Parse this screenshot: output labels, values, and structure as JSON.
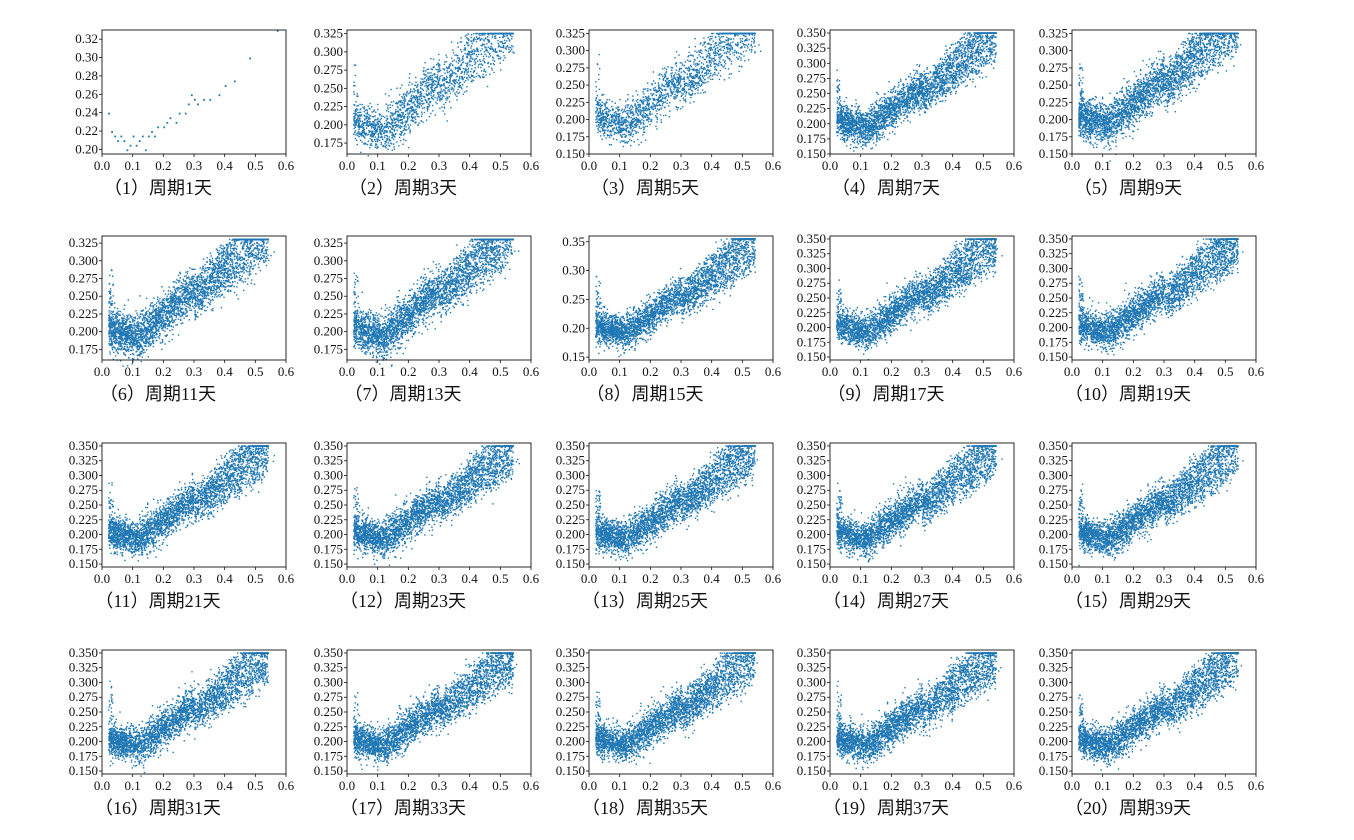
{
  "chart_data": [
    {
      "type": "scatter",
      "caption": "（1）周期1天",
      "xlim": [
        0,
        0.6
      ],
      "ylim": [
        0.195,
        0.33
      ],
      "xticks": [
        "0.0",
        "0.1",
        "0.2",
        "0.3",
        "0.4",
        "0.5",
        "0.6"
      ],
      "yticks": [
        "0.20",
        "0.22",
        "0.24",
        "0.26",
        "0.28",
        "0.30",
        "0.32"
      ],
      "color": "#1f77b4",
      "density": "sparse",
      "points": [
        [
          0.02,
          0.24
        ],
        [
          0.03,
          0.22
        ],
        [
          0.04,
          0.215
        ],
        [
          0.05,
          0.21
        ],
        [
          0.06,
          0.215
        ],
        [
          0.07,
          0.21
        ],
        [
          0.08,
          0.2
        ],
        [
          0.09,
          0.205
        ],
        [
          0.1,
          0.215
        ],
        [
          0.11,
          0.205
        ],
        [
          0.12,
          0.21
        ],
        [
          0.13,
          0.215
        ],
        [
          0.14,
          0.2
        ],
        [
          0.15,
          0.215
        ],
        [
          0.16,
          0.22
        ],
        [
          0.17,
          0.215
        ],
        [
          0.18,
          0.225
        ],
        [
          0.2,
          0.225
        ],
        [
          0.21,
          0.23
        ],
        [
          0.22,
          0.235
        ],
        [
          0.24,
          0.23
        ],
        [
          0.25,
          0.24
        ],
        [
          0.27,
          0.24
        ],
        [
          0.28,
          0.25
        ],
        [
          0.29,
          0.26
        ],
        [
          0.3,
          0.255
        ],
        [
          0.31,
          0.25
        ],
        [
          0.33,
          0.255
        ],
        [
          0.35,
          0.255
        ],
        [
          0.38,
          0.26
        ],
        [
          0.4,
          0.27
        ],
        [
          0.43,
          0.275
        ],
        [
          0.48,
          0.3
        ],
        [
          0.57,
          0.33
        ]
      ]
    },
    {
      "type": "scatter",
      "caption": "（2）周期3天",
      "xlim": [
        0,
        0.6
      ],
      "ylim": [
        0.16,
        0.33
      ],
      "xticks": [
        "0.0",
        "0.1",
        "0.2",
        "0.3",
        "0.4",
        "0.5",
        "0.6"
      ],
      "yticks": [
        "0.175",
        "0.200",
        "0.225",
        "0.250",
        "0.275",
        "0.300",
        "0.325"
      ],
      "color": "#1f77b4",
      "density": "medium"
    },
    {
      "type": "scatter",
      "caption": "（3）周期5天",
      "xlim": [
        0,
        0.6
      ],
      "ylim": [
        0.15,
        0.33
      ],
      "xticks": [
        "0.0",
        "0.1",
        "0.2",
        "0.3",
        "0.4",
        "0.5",
        "0.6"
      ],
      "yticks": [
        "0.150",
        "0.175",
        "0.200",
        "0.225",
        "0.250",
        "0.275",
        "0.300",
        "0.325"
      ],
      "color": "#1f77b4",
      "density": "medium"
    },
    {
      "type": "scatter",
      "caption": "（4）周期7天",
      "xlim": [
        0,
        0.6
      ],
      "ylim": [
        0.15,
        0.355
      ],
      "xticks": [
        "0.0",
        "0.1",
        "0.2",
        "0.3",
        "0.4",
        "0.5",
        "0.6"
      ],
      "yticks": [
        "0.150",
        "0.175",
        "0.200",
        "0.225",
        "0.250",
        "0.275",
        "0.300",
        "0.325",
        "0.350"
      ],
      "color": "#1f77b4",
      "density": "dense"
    },
    {
      "type": "scatter",
      "caption": "（5）周期9天",
      "xlim": [
        0,
        0.6
      ],
      "ylim": [
        0.15,
        0.33
      ],
      "xticks": [
        "0.0",
        "0.1",
        "0.2",
        "0.3",
        "0.4",
        "0.5",
        "0.6"
      ],
      "yticks": [
        "0.150",
        "0.175",
        "0.200",
        "0.225",
        "0.250",
        "0.275",
        "0.300",
        "0.325"
      ],
      "color": "#1f77b4",
      "density": "dense"
    },
    {
      "type": "scatter",
      "caption": "（6）周期11天",
      "xlim": [
        0,
        0.6
      ],
      "ylim": [
        0.16,
        0.335
      ],
      "xticks": [
        "0.0",
        "0.1",
        "0.2",
        "0.3",
        "0.4",
        "0.5",
        "0.6"
      ],
      "yticks": [
        "0.175",
        "0.200",
        "0.225",
        "0.250",
        "0.275",
        "0.300",
        "0.325"
      ],
      "color": "#1f77b4",
      "density": "dense"
    },
    {
      "type": "scatter",
      "caption": "（7）周期13天",
      "xlim": [
        0,
        0.6
      ],
      "ylim": [
        0.16,
        0.335
      ],
      "xticks": [
        "0.0",
        "0.1",
        "0.2",
        "0.3",
        "0.4",
        "0.5",
        "0.6"
      ],
      "yticks": [
        "0.175",
        "0.200",
        "0.225",
        "0.250",
        "0.275",
        "0.300",
        "0.325"
      ],
      "color": "#1f77b4",
      "density": "dense"
    },
    {
      "type": "scatter",
      "caption": "（8）周期15天",
      "xlim": [
        0,
        0.6
      ],
      "ylim": [
        0.145,
        0.36
      ],
      "xticks": [
        "0.0",
        "0.1",
        "0.2",
        "0.3",
        "0.4",
        "0.5",
        "0.6"
      ],
      "yticks": [
        "0.15",
        "0.20",
        "0.25",
        "0.30",
        "0.35"
      ],
      "color": "#1f77b4",
      "density": "dense"
    },
    {
      "type": "scatter",
      "caption": "（9）周期17天",
      "xlim": [
        0,
        0.6
      ],
      "ylim": [
        0.145,
        0.355
      ],
      "xticks": [
        "0.0",
        "0.1",
        "0.2",
        "0.3",
        "0.4",
        "0.5",
        "0.6"
      ],
      "yticks": [
        "0.150",
        "0.175",
        "0.200",
        "0.225",
        "0.250",
        "0.275",
        "0.300",
        "0.325",
        "0.350"
      ],
      "color": "#1f77b4",
      "density": "dense"
    },
    {
      "type": "scatter",
      "caption": "（10）周期19天",
      "xlim": [
        0,
        0.6
      ],
      "ylim": [
        0.145,
        0.355
      ],
      "xticks": [
        "0.0",
        "0.1",
        "0.2",
        "0.3",
        "0.4",
        "0.5",
        "0.6"
      ],
      "yticks": [
        "0.150",
        "0.175",
        "0.200",
        "0.225",
        "0.250",
        "0.275",
        "0.300",
        "0.325",
        "0.350"
      ],
      "color": "#1f77b4",
      "density": "dense"
    },
    {
      "type": "scatter",
      "caption": "（11）周期21天",
      "xlim": [
        0,
        0.6
      ],
      "ylim": [
        0.145,
        0.355
      ],
      "xticks": [
        "0.0",
        "0.1",
        "0.2",
        "0.3",
        "0.4",
        "0.5",
        "0.6"
      ],
      "yticks": [
        "0.150",
        "0.175",
        "0.200",
        "0.225",
        "0.250",
        "0.275",
        "0.300",
        "0.325",
        "0.350"
      ],
      "color": "#1f77b4",
      "density": "dense"
    },
    {
      "type": "scatter",
      "caption": "（12）周期23天",
      "xlim": [
        0,
        0.6
      ],
      "ylim": [
        0.145,
        0.355
      ],
      "xticks": [
        "0.0",
        "0.1",
        "0.2",
        "0.3",
        "0.4",
        "0.5",
        "0.6"
      ],
      "yticks": [
        "0.150",
        "0.175",
        "0.200",
        "0.225",
        "0.250",
        "0.275",
        "0.300",
        "0.325",
        "0.350"
      ],
      "color": "#1f77b4",
      "density": "dense"
    },
    {
      "type": "scatter",
      "caption": "（13）周期25天",
      "xlim": [
        0,
        0.6
      ],
      "ylim": [
        0.145,
        0.355
      ],
      "xticks": [
        "0.0",
        "0.1",
        "0.2",
        "0.3",
        "0.4",
        "0.5",
        "0.6"
      ],
      "yticks": [
        "0.150",
        "0.175",
        "0.200",
        "0.225",
        "0.250",
        "0.275",
        "0.300",
        "0.325",
        "0.350"
      ],
      "color": "#1f77b4",
      "density": "dense"
    },
    {
      "type": "scatter",
      "caption": "（14）周期27天",
      "xlim": [
        0,
        0.6
      ],
      "ylim": [
        0.145,
        0.355
      ],
      "xticks": [
        "0.0",
        "0.1",
        "0.2",
        "0.3",
        "0.4",
        "0.5",
        "0.6"
      ],
      "yticks": [
        "0.150",
        "0.175",
        "0.200",
        "0.225",
        "0.250",
        "0.275",
        "0.300",
        "0.325",
        "0.350"
      ],
      "color": "#1f77b4",
      "density": "dense"
    },
    {
      "type": "scatter",
      "caption": "（15）周期29天",
      "xlim": [
        0,
        0.6
      ],
      "ylim": [
        0.145,
        0.355
      ],
      "xticks": [
        "0.0",
        "0.1",
        "0.2",
        "0.3",
        "0.4",
        "0.5",
        "0.6"
      ],
      "yticks": [
        "0.150",
        "0.175",
        "0.200",
        "0.225",
        "0.250",
        "0.275",
        "0.300",
        "0.325",
        "0.350"
      ],
      "color": "#1f77b4",
      "density": "dense"
    },
    {
      "type": "scatter",
      "caption": "（16）周期31天",
      "xlim": [
        0,
        0.6
      ],
      "ylim": [
        0.145,
        0.355
      ],
      "xticks": [
        "0.0",
        "0.1",
        "0.2",
        "0.3",
        "0.4",
        "0.5",
        "0.6"
      ],
      "yticks": [
        "0.150",
        "0.175",
        "0.200",
        "0.225",
        "0.250",
        "0.275",
        "0.300",
        "0.325",
        "0.350"
      ],
      "color": "#1f77b4",
      "density": "dense"
    },
    {
      "type": "scatter",
      "caption": "（17）周期33天",
      "xlim": [
        0,
        0.6
      ],
      "ylim": [
        0.145,
        0.355
      ],
      "xticks": [
        "0.0",
        "0.1",
        "0.2",
        "0.3",
        "0.4",
        "0.5",
        "0.6"
      ],
      "yticks": [
        "0.150",
        "0.175",
        "0.200",
        "0.225",
        "0.250",
        "0.275",
        "0.300",
        "0.325",
        "0.350"
      ],
      "color": "#1f77b4",
      "density": "dense"
    },
    {
      "type": "scatter",
      "caption": "（18）周期35天",
      "xlim": [
        0,
        0.6
      ],
      "ylim": [
        0.145,
        0.355
      ],
      "xticks": [
        "0.0",
        "0.1",
        "0.2",
        "0.3",
        "0.4",
        "0.5",
        "0.6"
      ],
      "yticks": [
        "0.150",
        "0.175",
        "0.200",
        "0.225",
        "0.250",
        "0.275",
        "0.300",
        "0.325",
        "0.350"
      ],
      "color": "#1f77b4",
      "density": "dense"
    },
    {
      "type": "scatter",
      "caption": "（19）周期37天",
      "xlim": [
        0,
        0.6
      ],
      "ylim": [
        0.145,
        0.355
      ],
      "xticks": [
        "0.0",
        "0.1",
        "0.2",
        "0.3",
        "0.4",
        "0.5",
        "0.6"
      ],
      "yticks": [
        "0.150",
        "0.175",
        "0.200",
        "0.225",
        "0.250",
        "0.275",
        "0.300",
        "0.325",
        "0.350"
      ],
      "color": "#1f77b4",
      "density": "dense"
    },
    {
      "type": "scatter",
      "caption": "（20）周期39天",
      "xlim": [
        0,
        0.6
      ],
      "ylim": [
        0.145,
        0.355
      ],
      "xticks": [
        "0.0",
        "0.1",
        "0.2",
        "0.3",
        "0.4",
        "0.5",
        "0.6"
      ],
      "yticks": [
        "0.150",
        "0.175",
        "0.200",
        "0.225",
        "0.250",
        "0.275",
        "0.300",
        "0.325",
        "0.350"
      ],
      "color": "#1f77b4",
      "density": "dense"
    }
  ]
}
